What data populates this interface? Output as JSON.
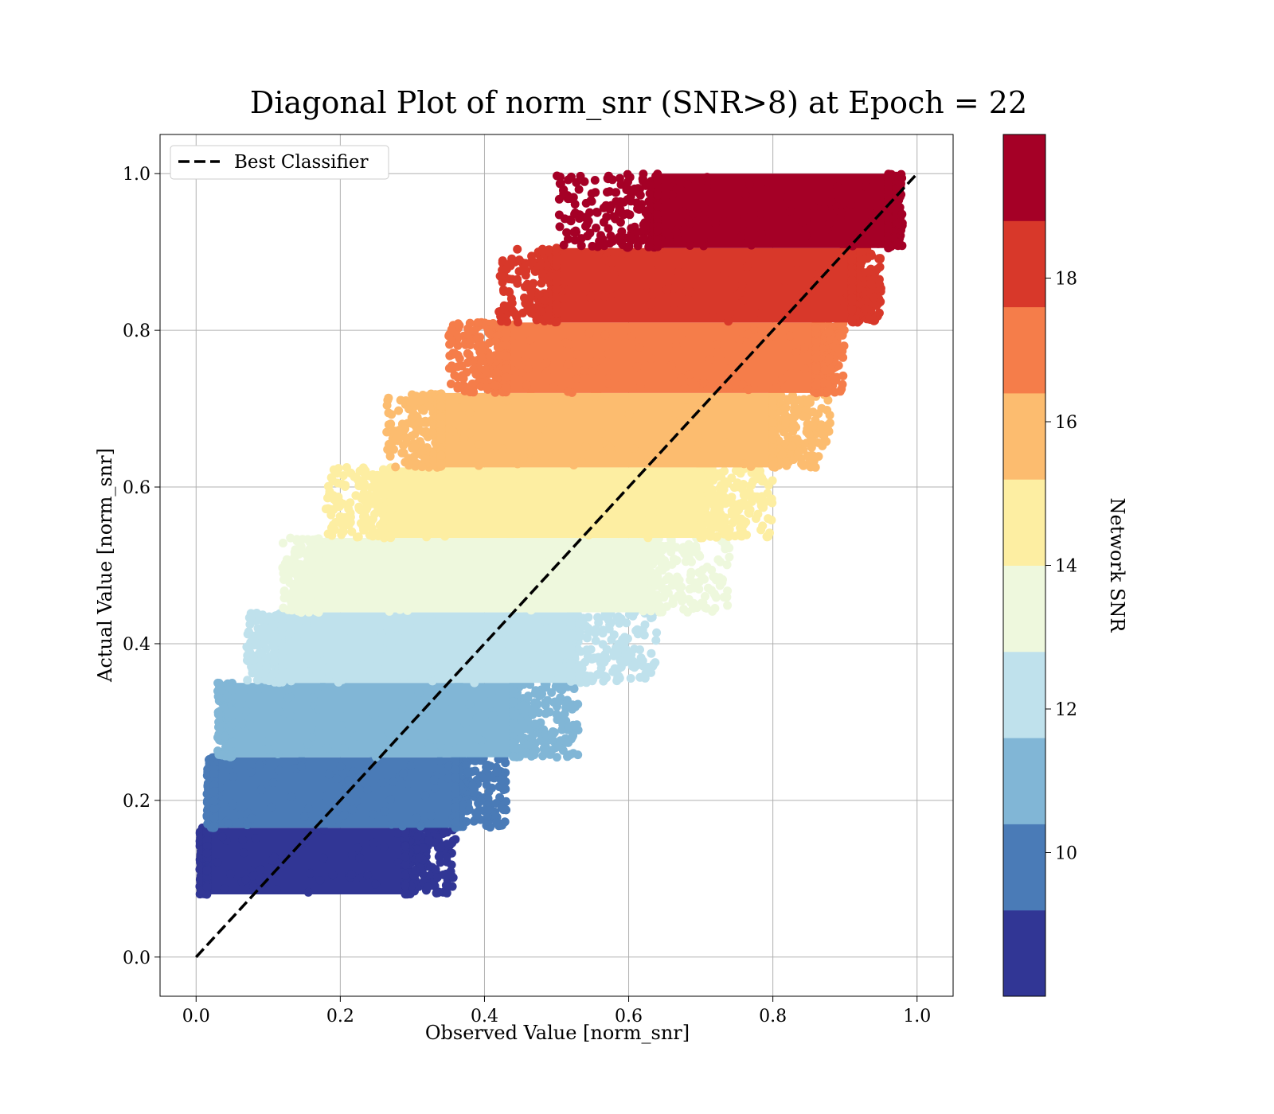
{
  "chart_data": {
    "type": "scatter",
    "title": "Diagonal Plot of norm_snr (SNR>8) at Epoch = 22",
    "xlabel": "Observed Value [norm_snr]",
    "ylabel": "Actual Value [norm_snr]",
    "xlim": [
      -0.05,
      1.05
    ],
    "ylim": [
      -0.05,
      1.05
    ],
    "xticks": [
      "0.0",
      "0.2",
      "0.4",
      "0.6",
      "0.8",
      "1.0"
    ],
    "yticks": [
      "0.0",
      "0.2",
      "0.4",
      "0.6",
      "0.8",
      "1.0"
    ],
    "grid": true,
    "legend": {
      "placement": "upper-left",
      "entries": [
        "Best Classifier"
      ]
    },
    "reference_line": {
      "name": "Best Classifier",
      "style": "dashed",
      "color": "#000000",
      "from": [
        0,
        0
      ],
      "to": [
        1,
        1
      ]
    },
    "colorbar": {
      "label": "Network SNR",
      "range": [
        8,
        20
      ],
      "ticks": [
        "10",
        "12",
        "14",
        "16",
        "18"
      ],
      "tick_values": [
        10,
        12,
        14,
        16,
        18
      ],
      "bins": [
        {
          "from": 8.0,
          "to": 9.2,
          "color": "#313695"
        },
        {
          "from": 9.2,
          "to": 10.4,
          "color": "#4a7bb7"
        },
        {
          "from": 10.4,
          "to": 11.6,
          "color": "#81b6d6"
        },
        {
          "from": 11.6,
          "to": 12.8,
          "color": "#bfe1ec"
        },
        {
          "from": 12.8,
          "to": 14.0,
          "color": "#eef8dd"
        },
        {
          "from": 14.0,
          "to": 15.2,
          "color": "#fdeea2"
        },
        {
          "from": 15.2,
          "to": 16.4,
          "color": "#fcbc6f"
        },
        {
          "from": 16.4,
          "to": 17.6,
          "color": "#f57d4a"
        },
        {
          "from": 17.6,
          "to": 18.8,
          "color": "#d8382a"
        },
        {
          "from": 18.8,
          "to": 20.0,
          "color": "#a50026"
        }
      ]
    },
    "bands": [
      {
        "y": [
          0.08,
          0.165
        ],
        "x_core": [
          0.015,
          0.29
        ],
        "spread": [
          0.005,
          0.36
        ],
        "color": "#313695"
      },
      {
        "y": [
          0.165,
          0.255
        ],
        "x_core": [
          0.025,
          0.36
        ],
        "spread": [
          0.015,
          0.43
        ],
        "color": "#4a7bb7"
      },
      {
        "y": [
          0.255,
          0.35
        ],
        "x_core": [
          0.05,
          0.44
        ],
        "spread": [
          0.03,
          0.53
        ],
        "color": "#81b6d6"
      },
      {
        "y": [
          0.35,
          0.44
        ],
        "x_core": [
          0.12,
          0.52
        ],
        "spread": [
          0.07,
          0.64
        ],
        "color": "#bfe1ec"
      },
      {
        "y": [
          0.44,
          0.535
        ],
        "x_core": [
          0.17,
          0.62
        ],
        "spread": [
          0.12,
          0.74
        ],
        "color": "#eef8dd"
      },
      {
        "y": [
          0.535,
          0.625
        ],
        "x_core": [
          0.27,
          0.7
        ],
        "spread": [
          0.18,
          0.8
        ],
        "color": "#fdeea2"
      },
      {
        "y": [
          0.625,
          0.72
        ],
        "x_core": [
          0.34,
          0.8
        ],
        "spread": [
          0.26,
          0.88
        ],
        "color": "#fcbc6f"
      },
      {
        "y": [
          0.72,
          0.81
        ],
        "x_core": [
          0.43,
          0.86
        ],
        "spread": [
          0.35,
          0.9
        ],
        "color": "#f57d4a"
      },
      {
        "y": [
          0.81,
          0.905
        ],
        "x_core": [
          0.5,
          0.91
        ],
        "spread": [
          0.42,
          0.95
        ],
        "color": "#d8382a"
      },
      {
        "y": [
          0.905,
          1.0
        ],
        "x_core": [
          0.64,
          0.96
        ],
        "spread": [
          0.5,
          0.98
        ],
        "color": "#a50026"
      }
    ]
  }
}
